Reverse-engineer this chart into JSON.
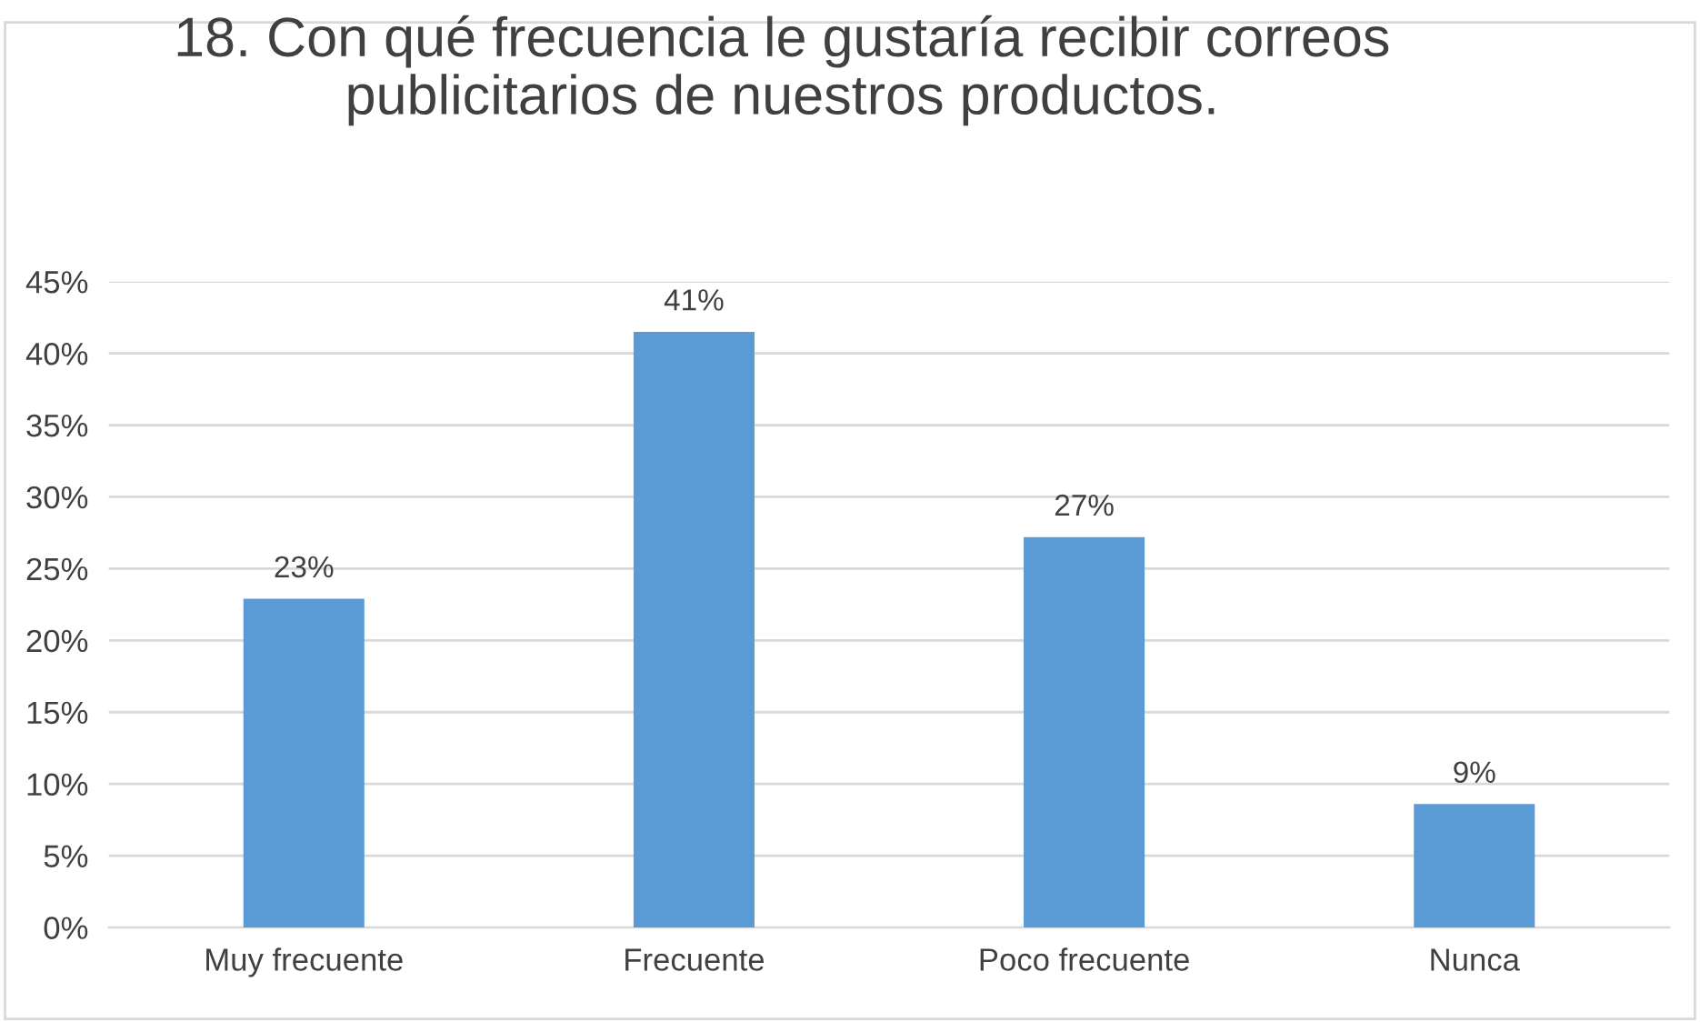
{
  "chart_data": {
    "type": "bar",
    "title": "18. Con qué frecuencia le gustaría recibir correos\npublicitarios de nuestros productos.",
    "categories": [
      "Muy frecuente",
      "Frecuente",
      "Poco frecuente",
      "Nunca"
    ],
    "values": [
      22.9,
      41.5,
      27.2,
      8.6
    ],
    "value_labels": [
      "23%",
      "41%",
      "27%",
      "9%"
    ],
    "color": "#5b9bd5",
    "ylim": [
      0,
      45
    ],
    "yticks": [
      {
        "value": 0,
        "label": "0%"
      },
      {
        "value": 5,
        "label": "5%"
      },
      {
        "value": 10,
        "label": "10%"
      },
      {
        "value": 15,
        "label": "15%"
      },
      {
        "value": 20,
        "label": "20%"
      },
      {
        "value": 25,
        "label": "25%"
      },
      {
        "value": 30,
        "label": "30%"
      },
      {
        "value": 35,
        "label": "35%"
      },
      {
        "value": 40,
        "label": "40%"
      },
      {
        "value": 45,
        "label": "45%"
      }
    ],
    "grid": "y"
  }
}
